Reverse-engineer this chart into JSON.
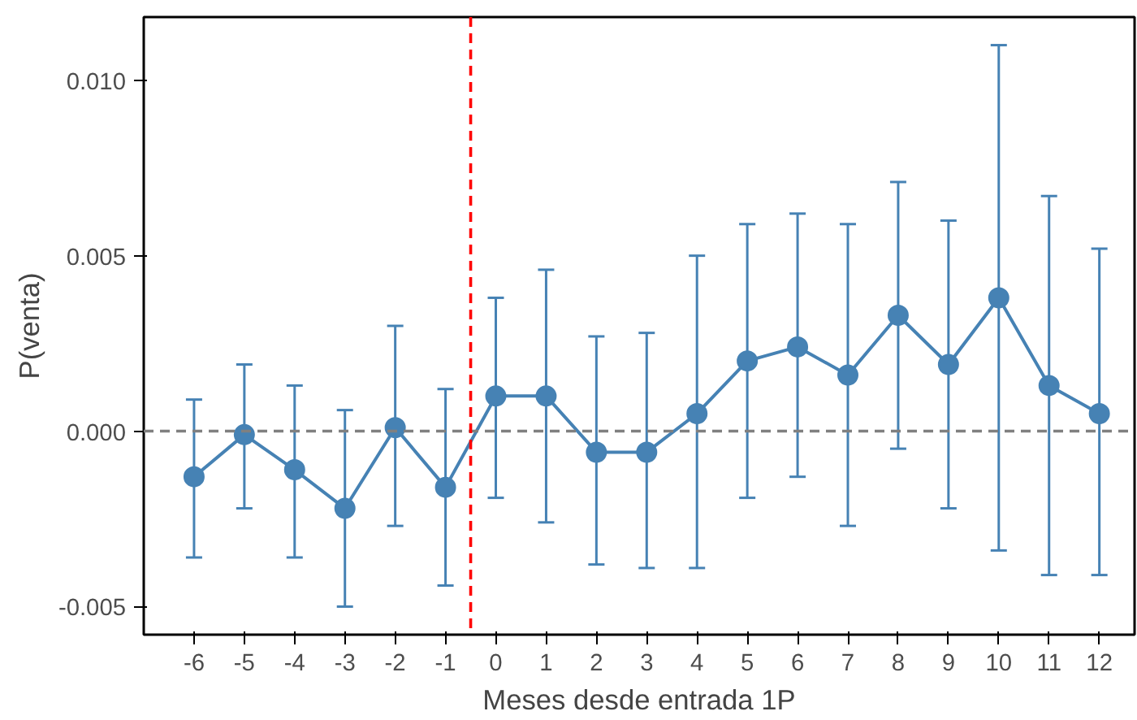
{
  "chart_data": {
    "type": "line",
    "xlabel": "Meses desde entrada 1P",
    "ylabel": "P(venta)",
    "x": [
      -6,
      -5,
      -4,
      -3,
      -2,
      -1,
      0,
      1,
      2,
      3,
      4,
      5,
      6,
      7,
      8,
      9,
      10,
      11,
      12
    ],
    "series": [
      {
        "color": "#4682b4",
        "values": [
          -0.0013,
          -0.0001,
          -0.0011,
          -0.0022,
          0.0001,
          -0.0016,
          0.001,
          0.001,
          -0.0006,
          -0.0006,
          0.0005,
          0.002,
          0.0024,
          0.0016,
          0.0033,
          0.0019,
          0.0038,
          0.0013,
          0.0005
        ],
        "errors": [
          [
            -0.0036,
            0.0009
          ],
          [
            -0.0022,
            0.0019
          ],
          [
            -0.0036,
            0.0013
          ],
          [
            -0.005,
            0.0006
          ],
          [
            -0.0027,
            0.003
          ],
          [
            -0.0044,
            0.0012
          ],
          [
            -0.0019,
            0.0038
          ],
          [
            -0.0026,
            0.0046
          ],
          [
            -0.0038,
            0.0027
          ],
          [
            -0.0039,
            0.0028
          ],
          [
            -0.0039,
            0.005
          ],
          [
            -0.0019,
            0.0059
          ],
          [
            -0.0013,
            0.0062
          ],
          [
            -0.0027,
            0.0059
          ],
          [
            -0.0005,
            0.0071
          ],
          [
            -0.0022,
            0.006
          ],
          [
            -0.0034,
            0.011
          ],
          [
            -0.0041,
            0.0067
          ],
          [
            -0.0041,
            0.0052
          ]
        ]
      }
    ],
    "xlim": [
      -7,
      12.7
    ],
    "ylim": [
      -0.0058,
      0.0118
    ],
    "xticks": [
      -6,
      -5,
      -4,
      -3,
      -2,
      -1,
      0,
      1,
      2,
      3,
      4,
      5,
      6,
      7,
      8,
      9,
      10,
      11,
      12
    ],
    "yticks": [
      {
        "value": -0.005,
        "label": "-0.005"
      },
      {
        "value": 0,
        "label": "0.000"
      },
      {
        "value": 0.005,
        "label": "0.005"
      },
      {
        "value": 0.01,
        "label": "0.010"
      }
    ],
    "ref_lines": [
      {
        "axis": "y",
        "value": 0,
        "color": "#808080",
        "line_style": "dashed"
      },
      {
        "axis": "x",
        "value": -0.5,
        "color": "#ff0000",
        "line_style": "dashed"
      }
    ],
    "marker": "circle",
    "line_style": "solid",
    "grid": false
  }
}
